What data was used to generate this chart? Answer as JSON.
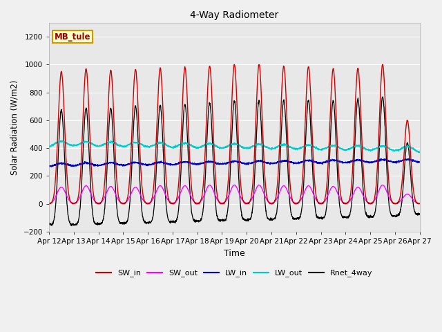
{
  "title": "4-Way Radiometer",
  "xlabel": "Time",
  "ylabel": "Solar Radiation (W/m2)",
  "ylim": [
    -200,
    1300
  ],
  "yticks": [
    -200,
    0,
    200,
    400,
    600,
    800,
    1000,
    1200
  ],
  "date_labels": [
    "Apr 12",
    "Apr 13",
    "Apr 14",
    "Apr 15",
    "Apr 16",
    "Apr 17",
    "Apr 18",
    "Apr 19",
    "Apr 20",
    "Apr 21",
    "Apr 22",
    "Apr 23",
    "Apr 24",
    "Apr 25",
    "Apr 26",
    "Apr 27"
  ],
  "colors": {
    "SW_in": "#cc0000",
    "SW_out": "#ff00ff",
    "LW_in": "#0000cc",
    "LW_out": "#00cccc",
    "Rnet_4way": "#000000"
  },
  "station_label": "MB_tule",
  "station_label_color": "#990000",
  "station_label_bg": "#ffffcc",
  "station_label_edge": "#cc9900"
}
